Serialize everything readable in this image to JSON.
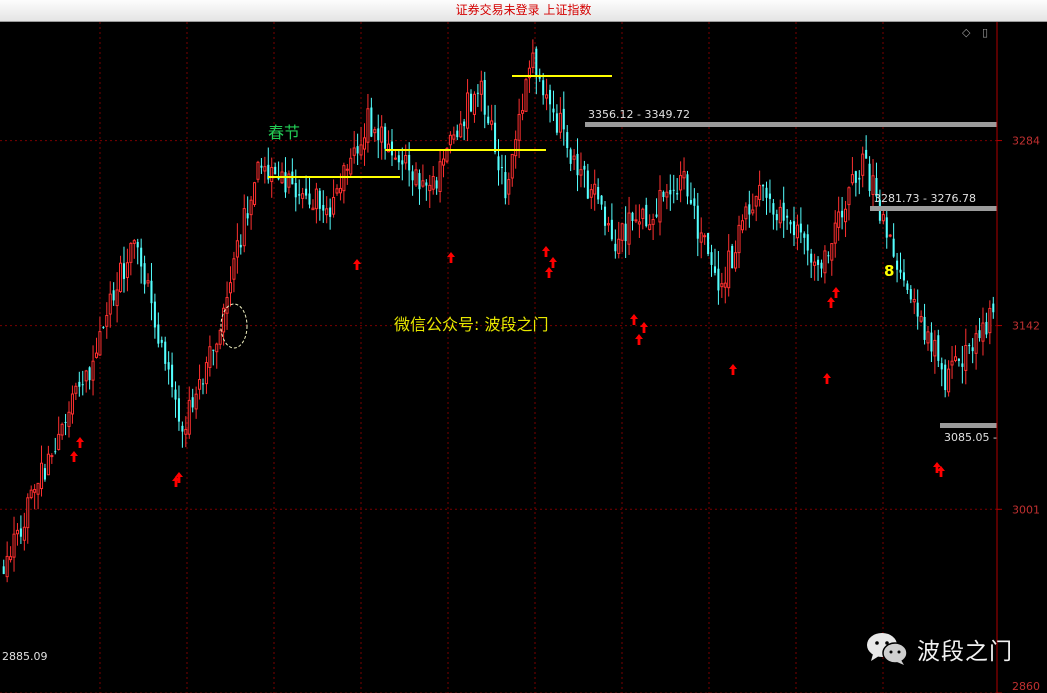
{
  "window": {
    "title": "证券交易未登录 上证指数"
  },
  "chart_data": {
    "type": "candlestick",
    "y_axis": {
      "ticks": [
        "3284",
        "3142",
        "3001",
        "2860"
      ],
      "ylim": [
        2860,
        3375
      ],
      "grid": true,
      "position": "right"
    },
    "colors": {
      "up": "#ff3030",
      "down": "#54ffff",
      "grid": "#7a0000",
      "axis": "#b00000",
      "tick_label": "#c03030",
      "level_line": "#ffff00",
      "range_bar": "#9b9b9b",
      "marker": "#ff0000"
    },
    "range_labels": [
      "3356.12 - 3349.72",
      "3281.73 - 3276.78",
      "3085.05 -"
    ],
    "low_label": "2885.09",
    "annotations": {
      "festival": "春节",
      "account": "微信公众号: 波段之门",
      "number": "8"
    },
    "segments": [
      {
        "from": 2960,
        "to": 3110,
        "steps": 25
      },
      {
        "from": 3110,
        "to": 3210,
        "steps": 13
      },
      {
        "from": 3210,
        "to": 3060,
        "steps": 14
      },
      {
        "from": 3060,
        "to": 3130,
        "steps": 10
      },
      {
        "from": 3130,
        "to": 3270,
        "steps": 12
      },
      {
        "from": 3270,
        "to": 3230,
        "steps": 20
      },
      {
        "from": 3230,
        "to": 3300,
        "steps": 12
      },
      {
        "from": 3300,
        "to": 3240,
        "steps": 18
      },
      {
        "from": 3240,
        "to": 3330,
        "steps": 14
      },
      {
        "from": 3330,
        "to": 3250,
        "steps": 8
      },
      {
        "from": 3250,
        "to": 3350,
        "steps": 8
      },
      {
        "from": 3350,
        "to": 3280,
        "steps": 10
      },
      {
        "from": 3280,
        "to": 3210,
        "steps": 14
      },
      {
        "from": 3210,
        "to": 3250,
        "steps": 20
      },
      {
        "from": 3250,
        "to": 3170,
        "steps": 10
      },
      {
        "from": 3170,
        "to": 3250,
        "steps": 12
      },
      {
        "from": 3250,
        "to": 3190,
        "steps": 18
      },
      {
        "from": 3190,
        "to": 3270,
        "steps": 12
      },
      {
        "from": 3270,
        "to": 3180,
        "steps": 12
      },
      {
        "from": 3180,
        "to": 3100,
        "steps": 12
      },
      {
        "from": 3100,
        "to": 3150,
        "steps": 14
      }
    ]
  },
  "watermark": {
    "text": "波段之门"
  }
}
